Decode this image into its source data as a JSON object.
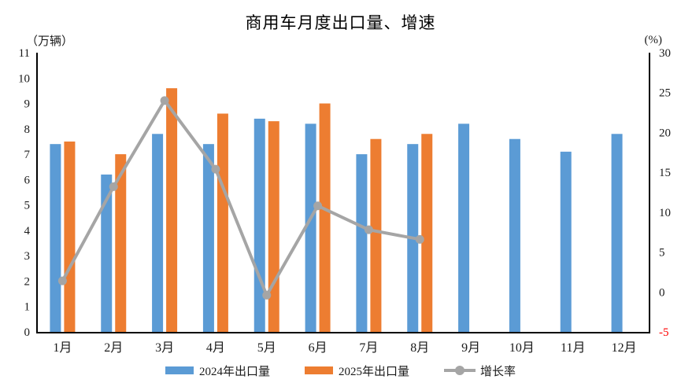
{
  "chart_data": {
    "type": "combo-bar-line",
    "title": "商用车月度出口量、增速",
    "text_color": "#1a1a1a",
    "axis_color": "#000000",
    "left_axis": {
      "label": "（万辆）",
      "min": 0,
      "max": 11,
      "step": 1
    },
    "right_axis": {
      "label": "(%)",
      "min": -5,
      "max": 30,
      "step": 5,
      "negative_tick_color": "#ff0000"
    },
    "categories": [
      "1月",
      "2月",
      "3月",
      "4月",
      "5月",
      "6月",
      "7月",
      "8月",
      "9月",
      "10月",
      "11月",
      "12月"
    ],
    "series": [
      {
        "name": "2024年出口量",
        "type": "bar",
        "axis": "left",
        "color": "#5B9BD5",
        "values": [
          7.4,
          6.2,
          7.8,
          7.4,
          8.4,
          8.2,
          7.0,
          7.4,
          8.2,
          7.6,
          7.1,
          7.8
        ]
      },
      {
        "name": "2025年出口量",
        "type": "bar",
        "axis": "left",
        "color": "#ED7D31",
        "values": [
          7.5,
          7.0,
          9.6,
          8.6,
          8.3,
          9.0,
          7.6,
          7.8,
          null,
          null,
          null,
          null
        ]
      },
      {
        "name": "增长率",
        "type": "line",
        "axis": "right",
        "color": "#A5A5A5",
        "values": [
          1.4,
          13.2,
          24.0,
          15.4,
          -0.4,
          10.8,
          7.8,
          6.6,
          null,
          null,
          null,
          null
        ]
      }
    ],
    "legend_position": "bottom",
    "grid": "off"
  }
}
